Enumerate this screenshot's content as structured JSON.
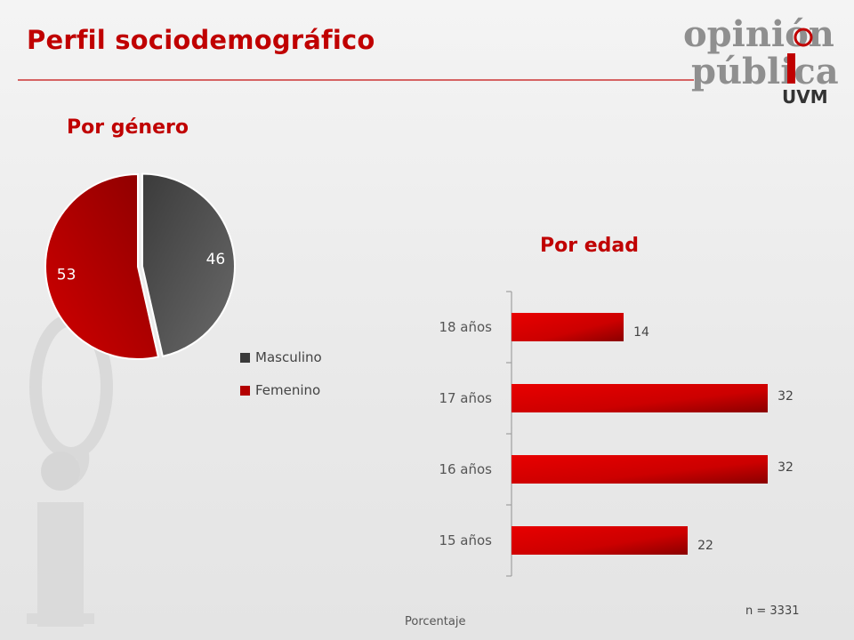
{
  "title": "Perfil sociodemográfico",
  "logo": {
    "line1": "opinión",
    "line2": "pública",
    "line3": "UVM"
  },
  "colors": {
    "accent": "#c00000",
    "masculino": "#3a3a3a",
    "femenino": "#b30000"
  },
  "sections": {
    "gender": "Por género",
    "age": "Por edad"
  },
  "footer": {
    "x_axis_label": "Porcentaje",
    "n_note": "n = 3331"
  },
  "chart_data": [
    {
      "type": "pie",
      "title": "Por género",
      "slices": [
        {
          "name": "Masculino",
          "value": 46,
          "label": "46",
          "color": "#3a3a3a"
        },
        {
          "name": "Femenino",
          "value": 53,
          "label": "53",
          "color": "#b30000"
        }
      ],
      "legend": "right"
    },
    {
      "type": "bar",
      "orientation": "horizontal",
      "title": "Por edad",
      "categories": [
        "18 años",
        "17 años",
        "16 años",
        "15 años"
      ],
      "values": [
        14,
        32,
        32,
        22
      ],
      "xlabel": "Porcentaje",
      "xlim": [
        0,
        33
      ],
      "color": "#d40000"
    }
  ]
}
